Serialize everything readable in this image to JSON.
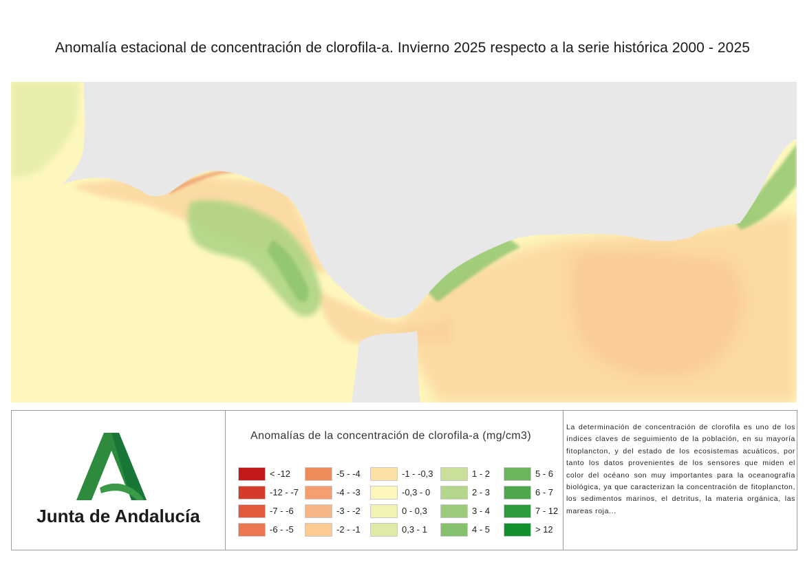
{
  "title": "Anomalía estacional de concentración de clorofila-a. Invierno 2025 respecto a la serie histórica 2000 - 2025",
  "map": {
    "colors": {
      "land": "#e8e8e8",
      "sea_base": "#fef7bd"
    }
  },
  "logo": {
    "text": "Junta de Andalucía",
    "colors": {
      "dark_green": "#2e8b3e",
      "light_green": "#3a9a48"
    }
  },
  "legend": {
    "title": "Anomalías de la concentración de clorofila-a (mg/cm3)",
    "columns": [
      [
        {
          "label": "< -12",
          "color": "#c21a1c"
        },
        {
          "label": "-12 - -7",
          "color": "#d53a2b"
        },
        {
          "label": "-7 - -6",
          "color": "#e15b3c"
        },
        {
          "label": "-6 - -5",
          "color": "#ea7750"
        }
      ],
      [
        {
          "label": "-5 - -4",
          "color": "#ef8b57"
        },
        {
          "label": "-4 - -3",
          "color": "#f4a06e"
        },
        {
          "label": "-3 - -2",
          "color": "#f8b585"
        },
        {
          "label": "-2 - -1",
          "color": "#fccb94"
        }
      ],
      [
        {
          "label": "-1 - -0,3",
          "color": "#fde0a4"
        },
        {
          "label": "-0,3 - 0",
          "color": "#fef7bd"
        },
        {
          "label": "0 - 0,3",
          "color": "#f1f2b4"
        },
        {
          "label": "0,3 - 1",
          "color": "#dfeaa6"
        }
      ],
      [
        {
          "label": "1 - 2",
          "color": "#c9e09a"
        },
        {
          "label": "2 - 3",
          "color": "#b3d68a"
        },
        {
          "label": "3 - 4",
          "color": "#9ccb7c"
        },
        {
          "label": "4 - 5",
          "color": "#85c06c"
        }
      ],
      [
        {
          "label": "5 - 6",
          "color": "#6cb45e"
        },
        {
          "label": "6 - 7",
          "color": "#4fa64d"
        },
        {
          "label": "7 - 12",
          "color": "#2f9a3e"
        },
        {
          "label": "> 12",
          "color": "#11902e"
        }
      ]
    ]
  },
  "description": "La determinación de concentración de clorofila es uno de los índices claves de seguimiento de la población, en su mayoría fitoplancton, y del estado de los ecosistemas acuáticos, por tanto los datos provenientes de los sensores que miden el color del océano son muy importantes para la oceanografía biológica, ya que caracterizan la concentración de fitoplancton, los sedimentos marinos, el detritus, la materia orgánica, las mareas roja..."
}
